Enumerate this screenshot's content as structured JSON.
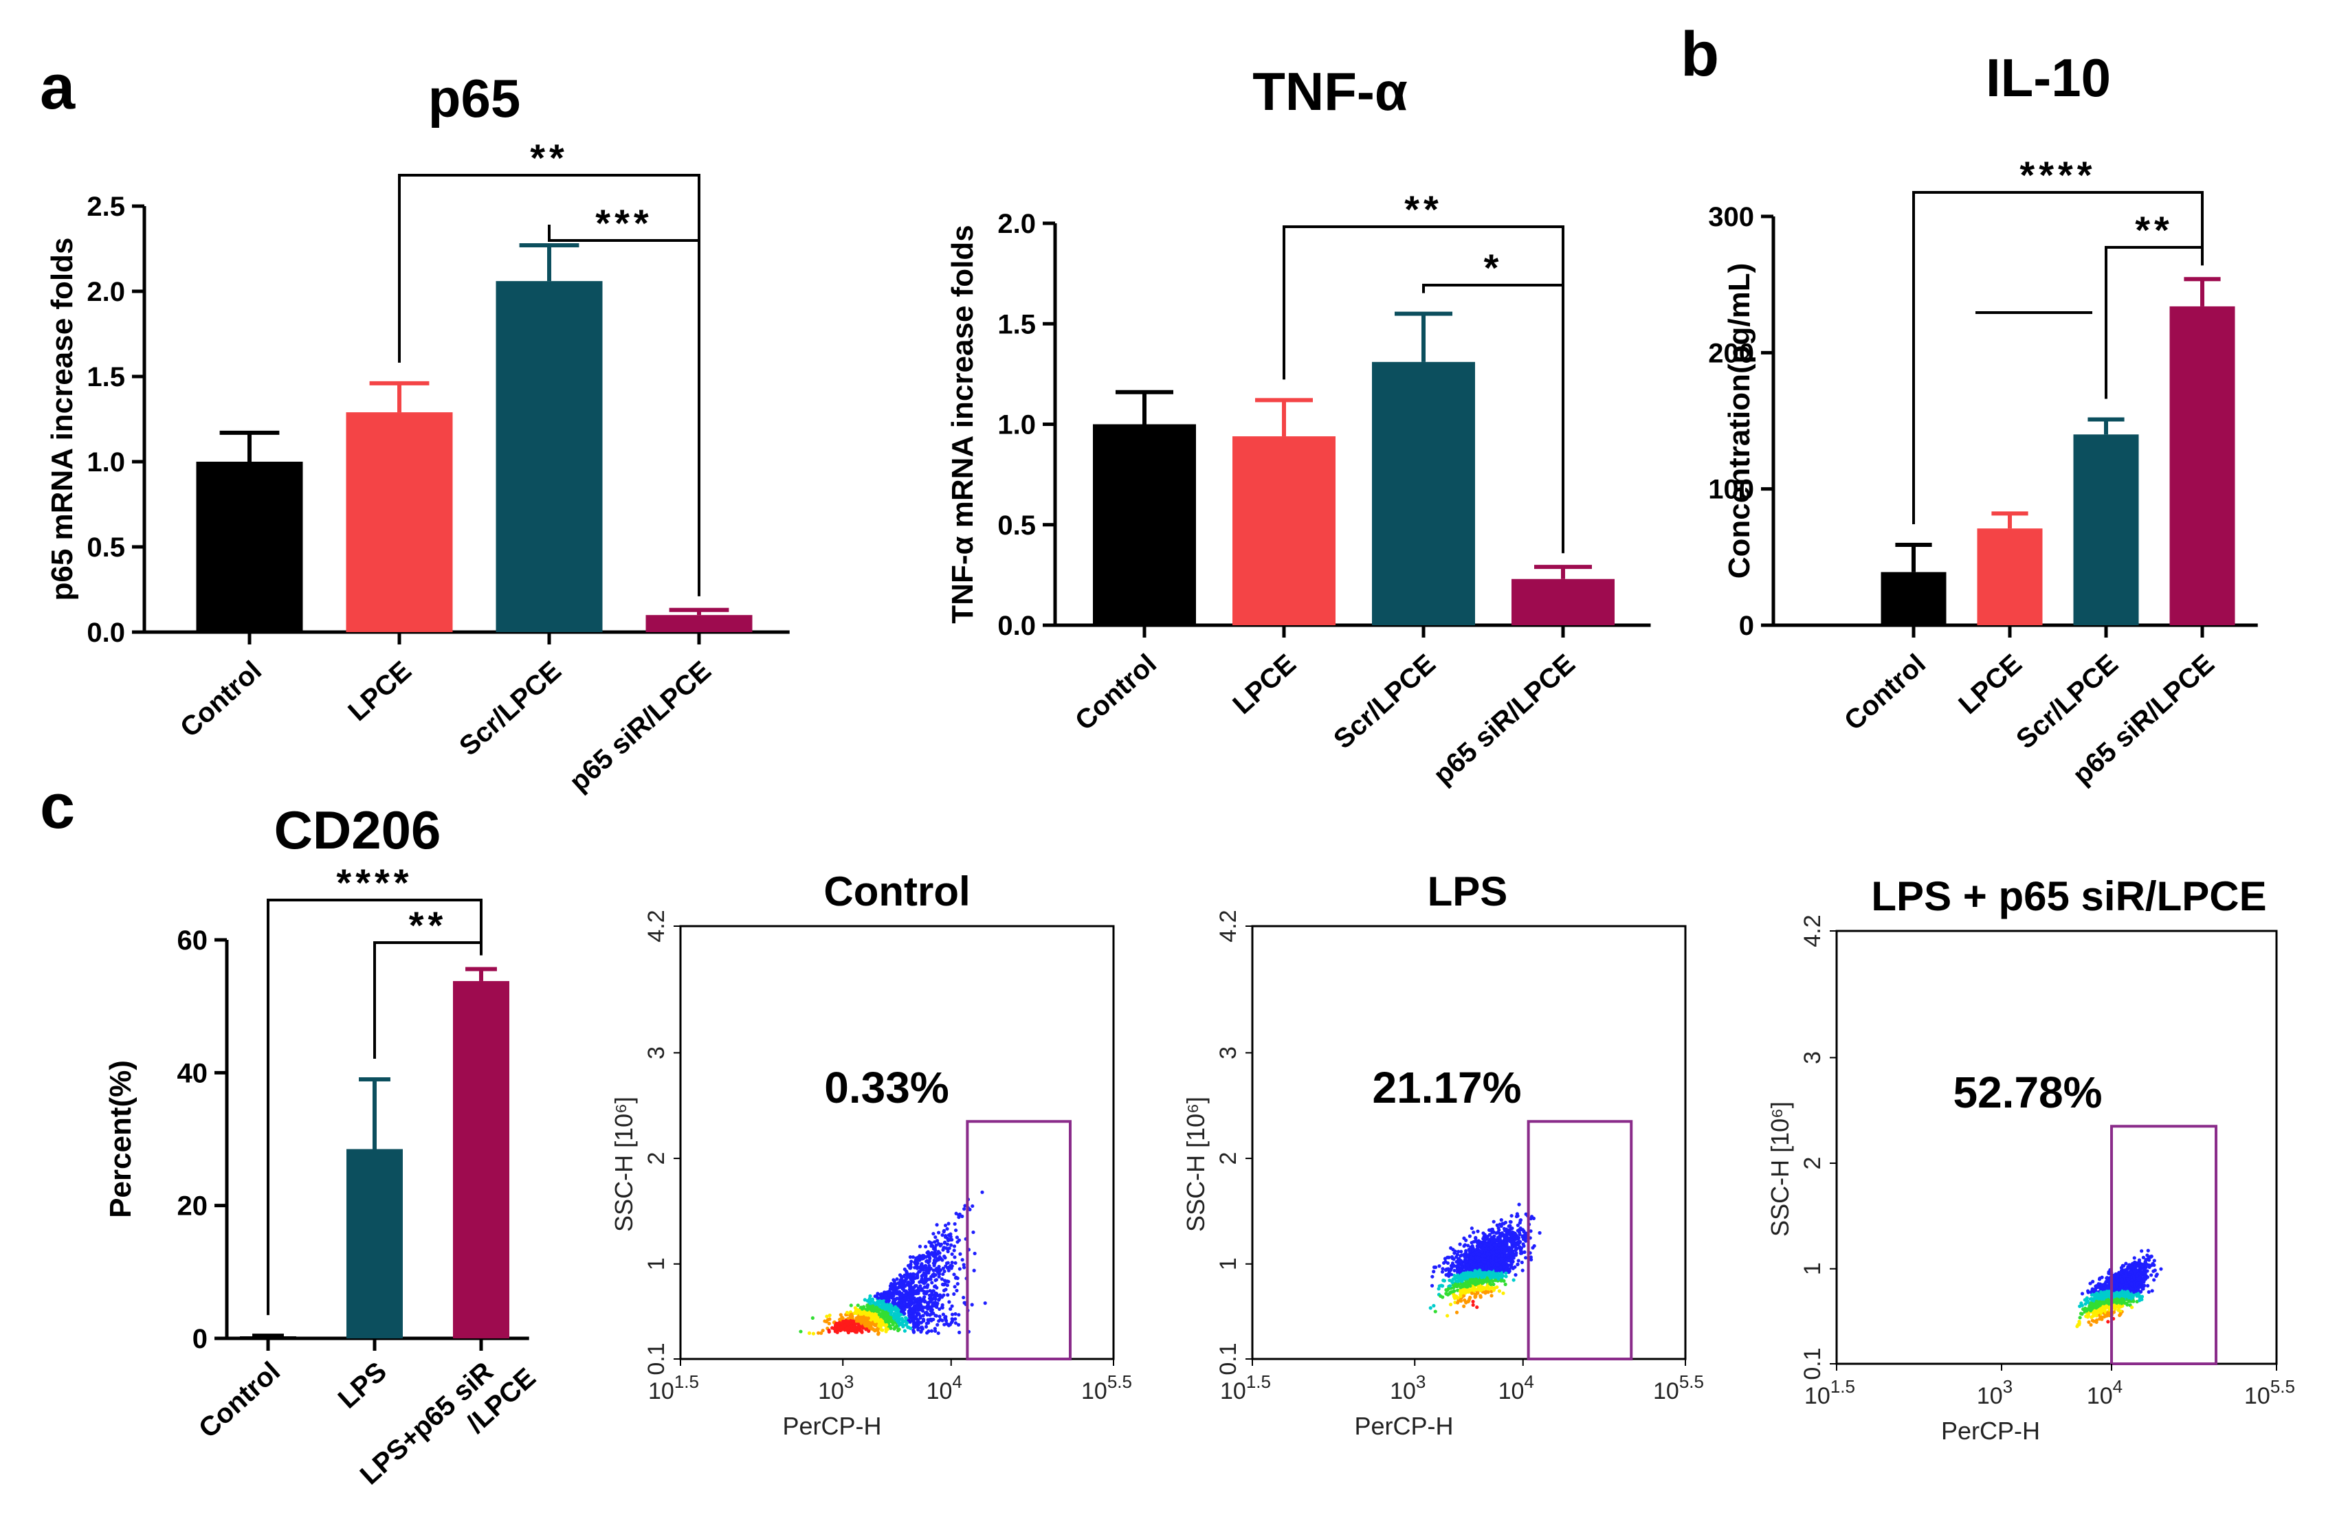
{
  "panels": {
    "a": "a",
    "b": "b",
    "c": "c"
  },
  "chart_data": [
    {
      "id": "p65",
      "type": "bar",
      "title": "p65",
      "ylabel": "p65 mRNA increase folds",
      "ylim": [
        0,
        2.5
      ],
      "yticks": [
        "0.0",
        "0.5",
        "1.0",
        "1.5",
        "2.0",
        "2.5"
      ],
      "categories": [
        "Control",
        "LPCE",
        "Scr/LPCE",
        "p65 siR/LPCE"
      ],
      "values": [
        1.0,
        1.29,
        2.06,
        0.1
      ],
      "errors": [
        0.17,
        0.17,
        0.21,
        0.03
      ],
      "colors": [
        "#000000",
        "#f44446",
        "#0c4f5e",
        "#9e0b4f"
      ],
      "significance": [
        {
          "from": 1,
          "to": 3,
          "label": "**"
        },
        {
          "from": 2,
          "to": 3,
          "label": "***"
        }
      ]
    },
    {
      "id": "tnf",
      "type": "bar",
      "title": "TNF-α",
      "ylabel": "TNF-α mRNA increase folds",
      "ylim": [
        0,
        2.0
      ],
      "yticks": [
        "0.0",
        "0.5",
        "1.0",
        "1.5",
        "2.0"
      ],
      "categories": [
        "Control",
        "LPCE",
        "Scr/LPCE",
        "p65 siR/LPCE"
      ],
      "values": [
        1.0,
        0.94,
        1.31,
        0.23
      ],
      "errors": [
        0.16,
        0.18,
        0.24,
        0.06
      ],
      "colors": [
        "#000000",
        "#f44446",
        "#0c4f5e",
        "#9e0b4f"
      ],
      "significance": [
        {
          "from": 1,
          "to": 3,
          "label": "**"
        },
        {
          "from": 2,
          "to": 3,
          "label": "*"
        }
      ]
    },
    {
      "id": "il10",
      "type": "bar",
      "title": "IL-10",
      "ylabel": "Concentration(pg/mL)",
      "ylim": [
        0,
        300
      ],
      "yticks": [
        "0",
        "100",
        "200",
        "300"
      ],
      "categories": [
        "Control",
        "LPCE",
        "Scr/LPCE",
        "p65 siR/LPCE"
      ],
      "values": [
        39,
        71,
        140,
        234
      ],
      "errors": [
        20,
        11,
        11,
        20
      ],
      "colors": [
        "#000000",
        "#f44446",
        "#0c4f5e",
        "#9e0b4f"
      ],
      "significance": [
        {
          "from": 0,
          "to": 3,
          "label": "****"
        },
        {
          "from": 2,
          "to": 3,
          "label": "**",
          "group_from": 1
        }
      ]
    },
    {
      "id": "cd206",
      "type": "bar",
      "title": "CD206",
      "ylabel": "Percent(%)",
      "ylim": [
        0,
        60
      ],
      "yticks": [
        "0",
        "20",
        "40",
        "60"
      ],
      "categories": [
        "Control",
        "LPS",
        "LPS+p65 siR\n/LPCE"
      ],
      "values": [
        0.3,
        28.5,
        53.8
      ],
      "errors": [
        0.1,
        10.5,
        1.8
      ],
      "colors": [
        "#000000",
        "#0c4f5e",
        "#9e0b4f"
      ],
      "significance": [
        {
          "from": 0,
          "to": 2,
          "label": "****"
        },
        {
          "from": 1,
          "to": 2,
          "label": "**"
        }
      ]
    },
    {
      "id": "flow-control",
      "type": "scatter",
      "title": "Control",
      "xlabel": "PerCP-H",
      "ylabel": "SSC-H [10⁶]",
      "percentage": "0.33%",
      "xticks": [
        {
          "base": "10",
          "exp": "1.5"
        },
        {
          "base": "10",
          "exp": "3"
        },
        {
          "base": "10",
          "exp": "4"
        },
        {
          "base": "10",
          "exp": "5.5"
        }
      ],
      "yticks": [
        "0.1",
        "1",
        "2",
        "3",
        "4.2"
      ],
      "xlim": [
        1.5,
        5.5
      ],
      "ylim": [
        0.1,
        4.2
      ],
      "gate": {
        "x": [
          4.15,
          5.1
        ],
        "y": [
          0.1,
          2.35
        ]
      },
      "cloud": {
        "cx": 3.05,
        "cy": 0.33,
        "spread": "low"
      }
    },
    {
      "id": "flow-lps",
      "type": "scatter",
      "title": "LPS",
      "xlabel": "PerCP-H",
      "ylabel": "SSC-H [10⁶]",
      "percentage": "21.17%",
      "xticks": [
        {
          "base": "10",
          "exp": "1.5"
        },
        {
          "base": "10",
          "exp": "3"
        },
        {
          "base": "10",
          "exp": "4"
        },
        {
          "base": "10",
          "exp": "5.5"
        }
      ],
      "yticks": [
        "0.1",
        "1",
        "2",
        "3",
        "4.2"
      ],
      "xlim": [
        1.5,
        5.5
      ],
      "ylim": [
        0.1,
        4.2
      ],
      "gate": {
        "x": [
          4.05,
          5.0
        ],
        "y": [
          0.1,
          2.35
        ]
      },
      "cloud": {
        "cx": 3.65,
        "cy": 0.55,
        "spread": "mid"
      }
    },
    {
      "id": "flow-lps-sir",
      "type": "scatter",
      "title": "LPS + p65 siR/LPCE",
      "xlabel": "PerCP-H",
      "ylabel": "SSC-H [10⁶]",
      "percentage": "52.78%",
      "xticks": [
        {
          "base": "10",
          "exp": "1.5"
        },
        {
          "base": "10",
          "exp": "3"
        },
        {
          "base": "10",
          "exp": "4"
        },
        {
          "base": "10",
          "exp": "5.5"
        }
      ],
      "yticks": [
        "0.1",
        "1",
        "2",
        "3",
        "4.2"
      ],
      "xlim": [
        1.5,
        5.5
      ],
      "ylim": [
        0.1,
        4.2
      ],
      "gate": {
        "x": [
          4.0,
          4.95
        ],
        "y": [
          0.1,
          2.35
        ]
      },
      "cloud": {
        "cx": 4.05,
        "cy": 0.4,
        "spread": "high"
      }
    }
  ]
}
